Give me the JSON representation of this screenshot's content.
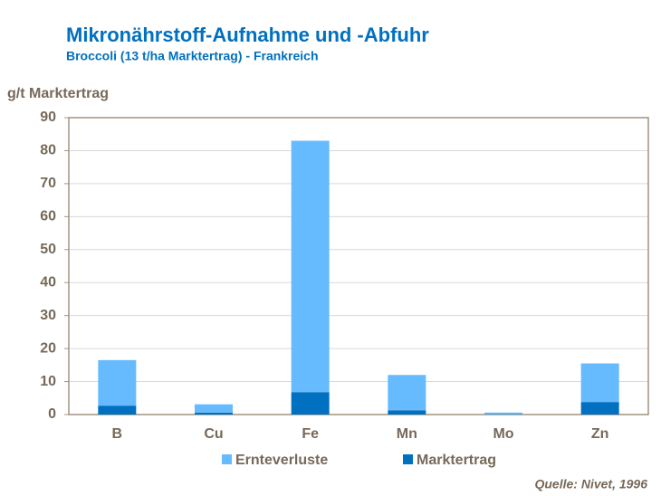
{
  "chart_data": {
    "type": "stacked_bar",
    "title": "Mikronährstoff-Aufnahme und -Abfuhr",
    "subtitle": "Broccoli (13 t/ha Marktertrag) - Frankreich",
    "y_label": "g/t Marktertrag",
    "source": "Quelle: Nivet, 1996",
    "categories": [
      "B",
      "Cu",
      "Fe",
      "Mn",
      "Mo",
      "Zn"
    ],
    "series": [
      {
        "name": "Ernteverluste",
        "color": "#66bbff",
        "values": [
          13.8,
          2.5,
          76.2,
          10.7,
          0.5,
          11.7
        ]
      },
      {
        "name": "Marktertrag",
        "color": "#0070c0",
        "values": [
          2.7,
          0.6,
          6.8,
          1.3,
          0.1,
          3.8
        ]
      }
    ],
    "ylim": [
      0,
      90
    ],
    "yticks": [
      0,
      10,
      20,
      30,
      40,
      50,
      60,
      70,
      80,
      90
    ],
    "grid": true
  }
}
